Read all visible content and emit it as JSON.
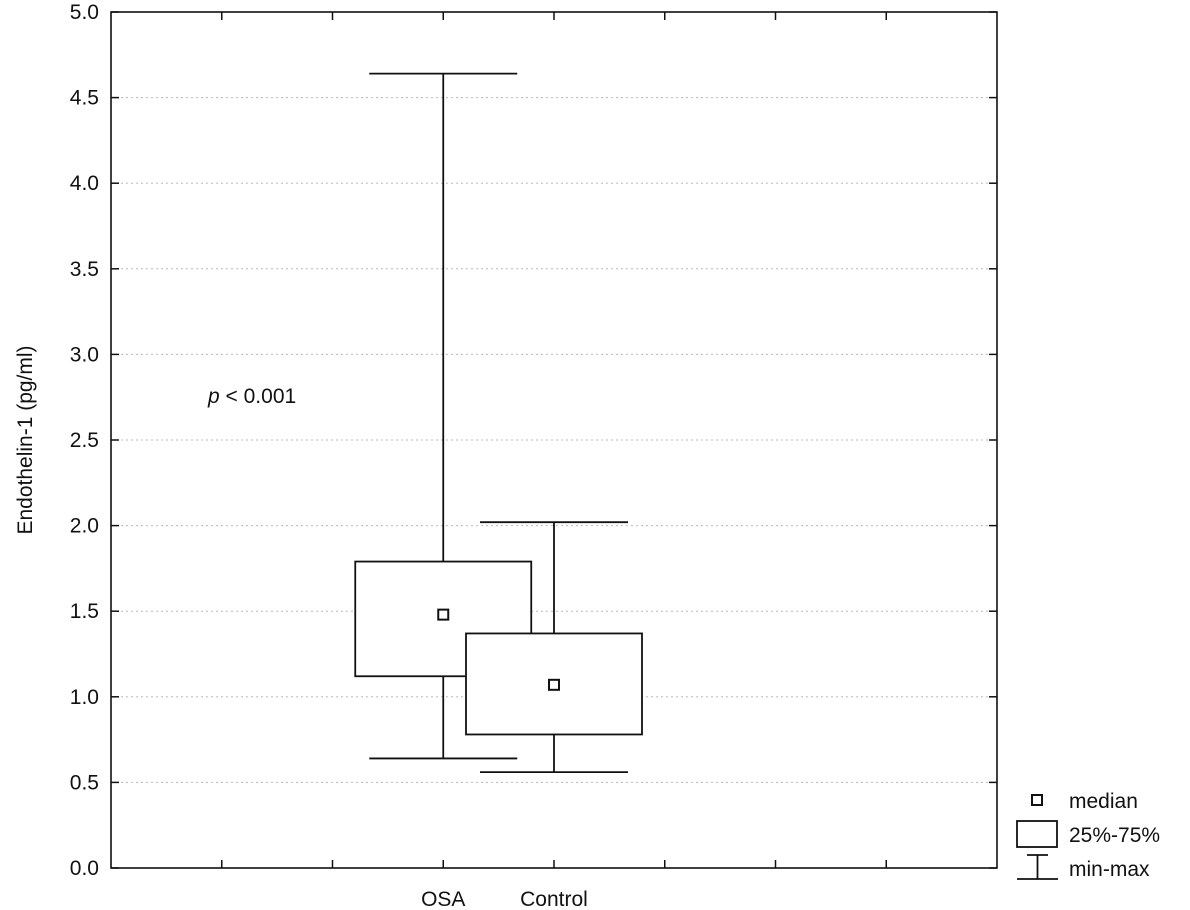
{
  "chart_data": {
    "type": "boxplot",
    "ylabel": "Endothelin-1 (pg/ml)",
    "xlabel": "",
    "ylim": [
      0.0,
      5.0
    ],
    "yticks": [
      "0.0",
      "0.5",
      "1.0",
      "1.5",
      "2.0",
      "2.5",
      "3.0",
      "3.5",
      "4.0",
      "4.5",
      "5.0"
    ],
    "categories": [
      "OSA",
      "Control"
    ],
    "boxes": [
      {
        "category": "OSA",
        "min": 0.64,
        "q1": 1.12,
        "median": 1.48,
        "q3": 1.79,
        "max": 4.64
      },
      {
        "category": "Control",
        "min": 0.56,
        "q1": 0.78,
        "median": 1.07,
        "q3": 1.37,
        "max": 2.02
      }
    ],
    "annotation": {
      "italic": "p",
      "rest": " < 0.001"
    },
    "grid": "horizontal dotted",
    "legend": {
      "position": "bottom-right outside",
      "items": [
        {
          "symbol": "median-marker",
          "label": "median"
        },
        {
          "symbol": "box",
          "label": "25%-75%"
        },
        {
          "symbol": "whisker",
          "label": "min-max"
        }
      ]
    },
    "colors": {
      "line": "#111111",
      "grid": "#bbbbbb",
      "background": "#ffffff"
    }
  }
}
